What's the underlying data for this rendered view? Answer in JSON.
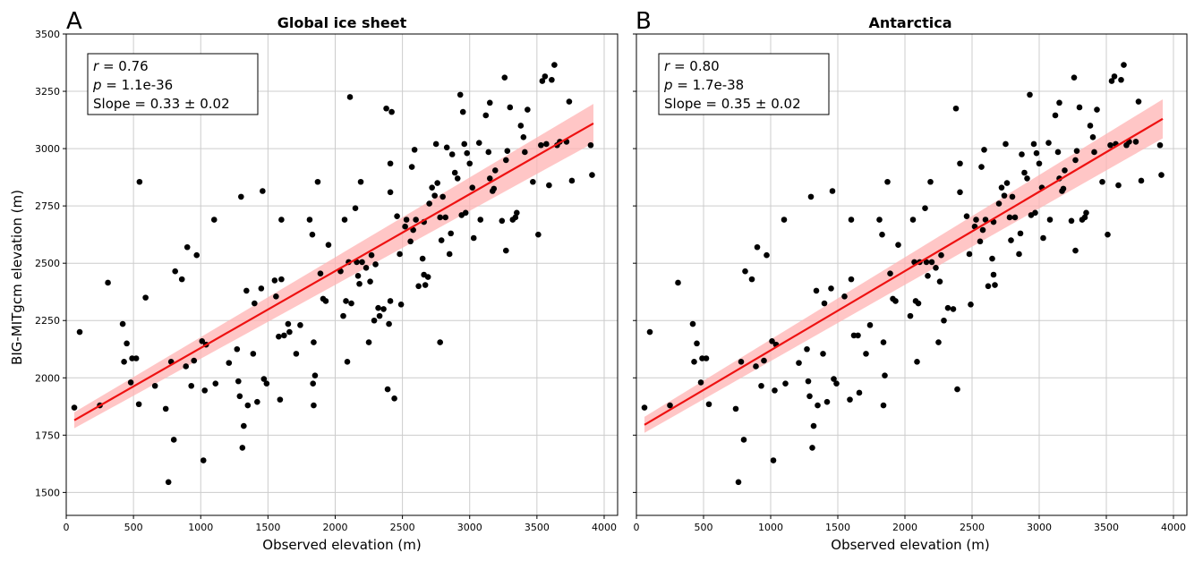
{
  "figure": {
    "ylabel": "BIG-MITgcm elevation (m)",
    "xlabel": "Observed elevation (m)",
    "xticks": [
      "0",
      "500",
      "1000",
      "1500",
      "2000",
      "2500",
      "3000",
      "3500",
      "4000"
    ],
    "yticks": [
      "1500",
      "1750",
      "2000",
      "2250",
      "2500",
      "2750",
      "3000",
      "3250",
      "3500"
    ],
    "colors": {
      "points": "#000000",
      "fit_line": "#ee1111",
      "ci_band": "#ffb3b3",
      "grid": "#cccccc"
    }
  },
  "panels": [
    {
      "letter": "A",
      "title": "Global ice sheet",
      "stats": {
        "r_label": "r",
        "r_value": " = 0.76",
        "p_label": "p",
        "p_value": " = 1.1e-36",
        "slope": "Slope = 0.33 ± 0.02"
      }
    },
    {
      "letter": "B",
      "title": "Antarctica",
      "stats": {
        "r_label": "r",
        "r_value": " = 0.80",
        "p_label": "p",
        "p_value": " = 1.7e-38",
        "slope": "Slope = 0.35 ± 0.02"
      }
    }
  ],
  "chart_data": [
    {
      "type": "scatter",
      "title": "Global ice sheet",
      "xlabel": "Observed elevation (m)",
      "ylabel": "BIG-MITgcm elevation (m)",
      "xlim": [
        0,
        4100
      ],
      "ylim": [
        1400,
        3500
      ],
      "grid": true,
      "fit": {
        "x": [
          60,
          3920
        ],
        "y": [
          1815,
          3110
        ],
        "ci_halfwidth": [
          35,
          85
        ]
      },
      "points": [
        [
          60,
          1870
        ],
        [
          100,
          2200
        ],
        [
          250,
          1880
        ],
        [
          310,
          2415
        ],
        [
          420,
          2235
        ],
        [
          430,
          2070
        ],
        [
          450,
          2150
        ],
        [
          480,
          1980
        ],
        [
          490,
          2085
        ],
        [
          520,
          2085
        ],
        [
          540,
          1885
        ],
        [
          545,
          2855
        ],
        [
          590,
          2350
        ],
        [
          660,
          1965
        ],
        [
          740,
          1865
        ],
        [
          760,
          1545
        ],
        [
          780,
          2070
        ],
        [
          800,
          1730
        ],
        [
          810,
          2465
        ],
        [
          860,
          2430
        ],
        [
          890,
          2050
        ],
        [
          900,
          2570
        ],
        [
          930,
          1965
        ],
        [
          950,
          2075
        ],
        [
          970,
          2535
        ],
        [
          1010,
          2160
        ],
        [
          1020,
          1640
        ],
        [
          1030,
          1945
        ],
        [
          1040,
          2145
        ],
        [
          1100,
          2690
        ],
        [
          1110,
          1975
        ],
        [
          1210,
          2065
        ],
        [
          1270,
          2125
        ],
        [
          1280,
          1985
        ],
        [
          1290,
          1920
        ],
        [
          1300,
          2790
        ],
        [
          1310,
          1695
        ],
        [
          1320,
          1790
        ],
        [
          1340,
          2380
        ],
        [
          1350,
          1880
        ],
        [
          1390,
          2105
        ],
        [
          1400,
          2325
        ],
        [
          1420,
          1895
        ],
        [
          1450,
          2390
        ],
        [
          1460,
          2815
        ],
        [
          1470,
          1995
        ],
        [
          1490,
          1975
        ],
        [
          1550,
          2425
        ],
        [
          1560,
          2355
        ],
        [
          1580,
          2180
        ],
        [
          1590,
          1905
        ],
        [
          1600,
          2430
        ],
        [
          1600,
          2690
        ],
        [
          1620,
          2185
        ],
        [
          1650,
          2235
        ],
        [
          1660,
          2200
        ],
        [
          1710,
          2105
        ],
        [
          1740,
          2230
        ],
        [
          1810,
          2690
        ],
        [
          1830,
          2625
        ],
        [
          1835,
          1975
        ],
        [
          1840,
          2155
        ],
        [
          1840,
          1880
        ],
        [
          1850,
          2010
        ],
        [
          1870,
          2855
        ],
        [
          1890,
          2455
        ],
        [
          1910,
          2345
        ],
        [
          1930,
          2335
        ],
        [
          1950,
          2580
        ],
        [
          2040,
          2465
        ],
        [
          2060,
          2270
        ],
        [
          2070,
          2690
        ],
        [
          2080,
          2335
        ],
        [
          2090,
          2070
        ],
        [
          2100,
          2505
        ],
        [
          2110,
          3225
        ],
        [
          2120,
          2325
        ],
        [
          2150,
          2740
        ],
        [
          2160,
          2505
        ],
        [
          2170,
          2445
        ],
        [
          2180,
          2410
        ],
        [
          2190,
          2855
        ],
        [
          2200,
          2505
        ],
        [
          2230,
          2480
        ],
        [
          2250,
          2155
        ],
        [
          2260,
          2420
        ],
        [
          2270,
          2535
        ],
        [
          2290,
          2250
        ],
        [
          2300,
          2495
        ],
        [
          2320,
          2305
        ],
        [
          2330,
          2270
        ],
        [
          2360,
          2300
        ],
        [
          2380,
          3175
        ],
        [
          2390,
          1950
        ],
        [
          2400,
          2235
        ],
        [
          2410,
          2335
        ],
        [
          2410,
          2810
        ],
        [
          2410,
          2935
        ],
        [
          2420,
          3160
        ],
        [
          2440,
          1910
        ],
        [
          2460,
          2705
        ],
        [
          2480,
          2540
        ],
        [
          2490,
          2320
        ],
        [
          2520,
          2660
        ],
        [
          2530,
          2690
        ],
        [
          2560,
          2595
        ],
        [
          2570,
          2920
        ],
        [
          2580,
          2645
        ],
        [
          2590,
          2995
        ],
        [
          2600,
          2690
        ],
        [
          2620,
          2400
        ],
        [
          2650,
          2520
        ],
        [
          2660,
          2680
        ],
        [
          2660,
          2450
        ],
        [
          2670,
          2405
        ],
        [
          2690,
          2440
        ],
        [
          2700,
          2760
        ],
        [
          2720,
          2830
        ],
        [
          2740,
          2795
        ],
        [
          2750,
          3020
        ],
        [
          2760,
          2850
        ],
        [
          2780,
          2155
        ],
        [
          2780,
          2700
        ],
        [
          2790,
          2600
        ],
        [
          2800,
          2790
        ],
        [
          2820,
          2700
        ],
        [
          2830,
          3005
        ],
        [
          2850,
          2540
        ],
        [
          2860,
          2630
        ],
        [
          2870,
          2975
        ],
        [
          2890,
          2895
        ],
        [
          2910,
          2870
        ],
        [
          2930,
          3235
        ],
        [
          2940,
          2710
        ],
        [
          2950,
          3160
        ],
        [
          2960,
          3020
        ],
        [
          2970,
          2720
        ],
        [
          2980,
          2980
        ],
        [
          3000,
          2935
        ],
        [
          3020,
          2830
        ],
        [
          3030,
          2610
        ],
        [
          3070,
          3025
        ],
        [
          3080,
          2690
        ],
        [
          3120,
          3145
        ],
        [
          3140,
          2985
        ],
        [
          3150,
          2870
        ],
        [
          3150,
          3200
        ],
        [
          3170,
          2815
        ],
        [
          3180,
          2825
        ],
        [
          3190,
          2905
        ],
        [
          3240,
          2685
        ],
        [
          3260,
          3310
        ],
        [
          3270,
          2950
        ],
        [
          3270,
          2555
        ],
        [
          3280,
          2990
        ],
        [
          3300,
          3180
        ],
        [
          3320,
          2690
        ],
        [
          3340,
          2700
        ],
        [
          3350,
          2720
        ],
        [
          3380,
          3100
        ],
        [
          3400,
          3050
        ],
        [
          3410,
          2985
        ],
        [
          3430,
          3170
        ],
        [
          3470,
          2855
        ],
        [
          3510,
          2625
        ],
        [
          3530,
          3015
        ],
        [
          3540,
          3295
        ],
        [
          3560,
          3315
        ],
        [
          3570,
          3020
        ],
        [
          3590,
          2840
        ],
        [
          3610,
          3300
        ],
        [
          3630,
          3365
        ],
        [
          3650,
          3015
        ],
        [
          3670,
          3030
        ],
        [
          3720,
          3030
        ],
        [
          3740,
          3205
        ],
        [
          3760,
          2860
        ],
        [
          3900,
          3015
        ],
        [
          3910,
          2885
        ]
      ]
    },
    {
      "type": "scatter",
      "title": "Antarctica",
      "xlabel": "Observed elevation (m)",
      "ylabel": "",
      "xlim": [
        0,
        4100
      ],
      "ylim": [
        1400,
        3500
      ],
      "grid": true,
      "fit": {
        "x": [
          60,
          3920
        ],
        "y": [
          1795,
          3130
        ],
        "ci_halfwidth": [
          35,
          85
        ]
      },
      "points": [
        [
          60,
          1870
        ],
        [
          100,
          2200
        ],
        [
          250,
          1880
        ],
        [
          310,
          2415
        ],
        [
          420,
          2235
        ],
        [
          430,
          2070
        ],
        [
          450,
          2150
        ],
        [
          480,
          1980
        ],
        [
          490,
          2085
        ],
        [
          520,
          2085
        ],
        [
          540,
          1885
        ],
        [
          740,
          1865
        ],
        [
          760,
          1545
        ],
        [
          780,
          2070
        ],
        [
          800,
          1730
        ],
        [
          810,
          2465
        ],
        [
          860,
          2430
        ],
        [
          890,
          2050
        ],
        [
          900,
          2570
        ],
        [
          930,
          1965
        ],
        [
          950,
          2075
        ],
        [
          970,
          2535
        ],
        [
          1010,
          2160
        ],
        [
          1020,
          1640
        ],
        [
          1030,
          1945
        ],
        [
          1040,
          2145
        ],
        [
          1100,
          2690
        ],
        [
          1110,
          1975
        ],
        [
          1210,
          2065
        ],
        [
          1270,
          2125
        ],
        [
          1280,
          1985
        ],
        [
          1290,
          1920
        ],
        [
          1300,
          2790
        ],
        [
          1310,
          1695
        ],
        [
          1320,
          1790
        ],
        [
          1340,
          2380
        ],
        [
          1350,
          1880
        ],
        [
          1390,
          2105
        ],
        [
          1400,
          2325
        ],
        [
          1420,
          1895
        ],
        [
          1450,
          2390
        ],
        [
          1460,
          2815
        ],
        [
          1470,
          1995
        ],
        [
          1490,
          1975
        ],
        [
          1550,
          2355
        ],
        [
          1590,
          1905
        ],
        [
          1600,
          2430
        ],
        [
          1600,
          2690
        ],
        [
          1620,
          2185
        ],
        [
          1650,
          2185
        ],
        [
          1660,
          1935
        ],
        [
          1710,
          2105
        ],
        [
          1740,
          2230
        ],
        [
          1810,
          2690
        ],
        [
          1830,
          2625
        ],
        [
          1840,
          2155
        ],
        [
          1840,
          1880
        ],
        [
          1850,
          2010
        ],
        [
          1870,
          2855
        ],
        [
          1890,
          2455
        ],
        [
          1910,
          2345
        ],
        [
          1930,
          2335
        ],
        [
          1950,
          2580
        ],
        [
          2040,
          2270
        ],
        [
          2060,
          2690
        ],
        [
          2070,
          2505
        ],
        [
          2080,
          2335
        ],
        [
          2090,
          2070
        ],
        [
          2100,
          2325
        ],
        [
          2110,
          2505
        ],
        [
          2150,
          2740
        ],
        [
          2160,
          2505
        ],
        [
          2170,
          2445
        ],
        [
          2190,
          2855
        ],
        [
          2200,
          2505
        ],
        [
          2230,
          2480
        ],
        [
          2250,
          2155
        ],
        [
          2260,
          2420
        ],
        [
          2270,
          2535
        ],
        [
          2290,
          2250
        ],
        [
          2320,
          2305
        ],
        [
          2360,
          2300
        ],
        [
          2380,
          3175
        ],
        [
          2390,
          1950
        ],
        [
          2410,
          2810
        ],
        [
          2410,
          2935
        ],
        [
          2460,
          2705
        ],
        [
          2480,
          2540
        ],
        [
          2490,
          2320
        ],
        [
          2520,
          2660
        ],
        [
          2530,
          2690
        ],
        [
          2560,
          2595
        ],
        [
          2570,
          2920
        ],
        [
          2580,
          2645
        ],
        [
          2590,
          2995
        ],
        [
          2600,
          2690
        ],
        [
          2620,
          2400
        ],
        [
          2650,
          2520
        ],
        [
          2660,
          2680
        ],
        [
          2660,
          2450
        ],
        [
          2670,
          2405
        ],
        [
          2700,
          2760
        ],
        [
          2720,
          2830
        ],
        [
          2740,
          2795
        ],
        [
          2750,
          3020
        ],
        [
          2760,
          2850
        ],
        [
          2780,
          2700
        ],
        [
          2790,
          2600
        ],
        [
          2800,
          2790
        ],
        [
          2820,
          2700
        ],
        [
          2850,
          2540
        ],
        [
          2860,
          2630
        ],
        [
          2870,
          2975
        ],
        [
          2890,
          2895
        ],
        [
          2910,
          2870
        ],
        [
          2930,
          3235
        ],
        [
          2940,
          2710
        ],
        [
          2960,
          3020
        ],
        [
          2970,
          2720
        ],
        [
          2980,
          2980
        ],
        [
          3000,
          2935
        ],
        [
          3020,
          2830
        ],
        [
          3030,
          2610
        ],
        [
          3070,
          3025
        ],
        [
          3080,
          2690
        ],
        [
          3120,
          3145
        ],
        [
          3140,
          2985
        ],
        [
          3150,
          2870
        ],
        [
          3150,
          3200
        ],
        [
          3170,
          2815
        ],
        [
          3180,
          2825
        ],
        [
          3190,
          2905
        ],
        [
          3240,
          2685
        ],
        [
          3260,
          3310
        ],
        [
          3270,
          2950
        ],
        [
          3270,
          2555
        ],
        [
          3280,
          2990
        ],
        [
          3300,
          3180
        ],
        [
          3320,
          2690
        ],
        [
          3340,
          2700
        ],
        [
          3350,
          2720
        ],
        [
          3380,
          3100
        ],
        [
          3400,
          3050
        ],
        [
          3410,
          2985
        ],
        [
          3430,
          3170
        ],
        [
          3470,
          2855
        ],
        [
          3510,
          2625
        ],
        [
          3530,
          3015
        ],
        [
          3540,
          3295
        ],
        [
          3560,
          3315
        ],
        [
          3570,
          3020
        ],
        [
          3590,
          2840
        ],
        [
          3610,
          3300
        ],
        [
          3630,
          3365
        ],
        [
          3650,
          3015
        ],
        [
          3670,
          3030
        ],
        [
          3720,
          3030
        ],
        [
          3740,
          3205
        ],
        [
          3760,
          2860
        ],
        [
          3900,
          3015
        ],
        [
          3910,
          2885
        ]
      ]
    }
  ]
}
